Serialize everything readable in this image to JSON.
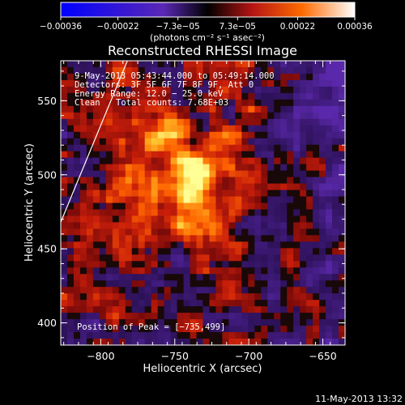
{
  "chart_data": {
    "type": "heatmap",
    "title": "Reconstructed RHESSI Image",
    "xlabel": "Heliocentric X (arcsec)",
    "ylabel": "Heliocentric Y (arcsec)",
    "xlim": [
      -827,
      -635
    ],
    "ylim": [
      385,
      577
    ],
    "x_ticks": [
      -800,
      -750,
      -700,
      -650
    ],
    "y_ticks": [
      400,
      450,
      500,
      550
    ],
    "x_tick_labels": [
      "−800",
      "−750",
      "−700",
      "−650"
    ],
    "y_tick_labels": [
      "400",
      "450",
      "500",
      "550"
    ],
    "colorbar": {
      "ticks": [
        -0.00036,
        -0.00022,
        -7.3e-05,
        7.3e-05,
        0.00022,
        0.00036
      ],
      "tick_labels": [
        "−0.00036",
        "−0.00022",
        "−7.3e−05",
        "7.3e−05",
        "0.00022",
        "0.00036"
      ],
      "units": "(photons cm⁻² s⁻¹ asec⁻²)",
      "range": [
        -0.00036,
        0.00036
      ]
    },
    "peak": {
      "x": -735,
      "y": 499
    },
    "limb_line": {
      "x": [
        -827,
        -782
      ],
      "y": [
        468,
        577
      ]
    },
    "annotations": {
      "time_range": "9‑May‑2013 05:43:44.000 to 05:49:14.000",
      "detectors": "Detectors: 3F 5F 6F 7F 8F 9F, Att 0",
      "energy": "Energy Range: 12.0 − 25.0 keV",
      "algorithm": "Clean",
      "counts": "Total counts: 7.68E+03",
      "peak_text": "Position of Peak = [−735,499]"
    },
    "footer_date": "11‑May‑2013 13:32"
  },
  "colors": {
    "background": "#000000",
    "negative": "#3a2080",
    "positive_low": "#8a1010",
    "positive_mid": "#ff5a00",
    "peak": "#ffff80"
  }
}
